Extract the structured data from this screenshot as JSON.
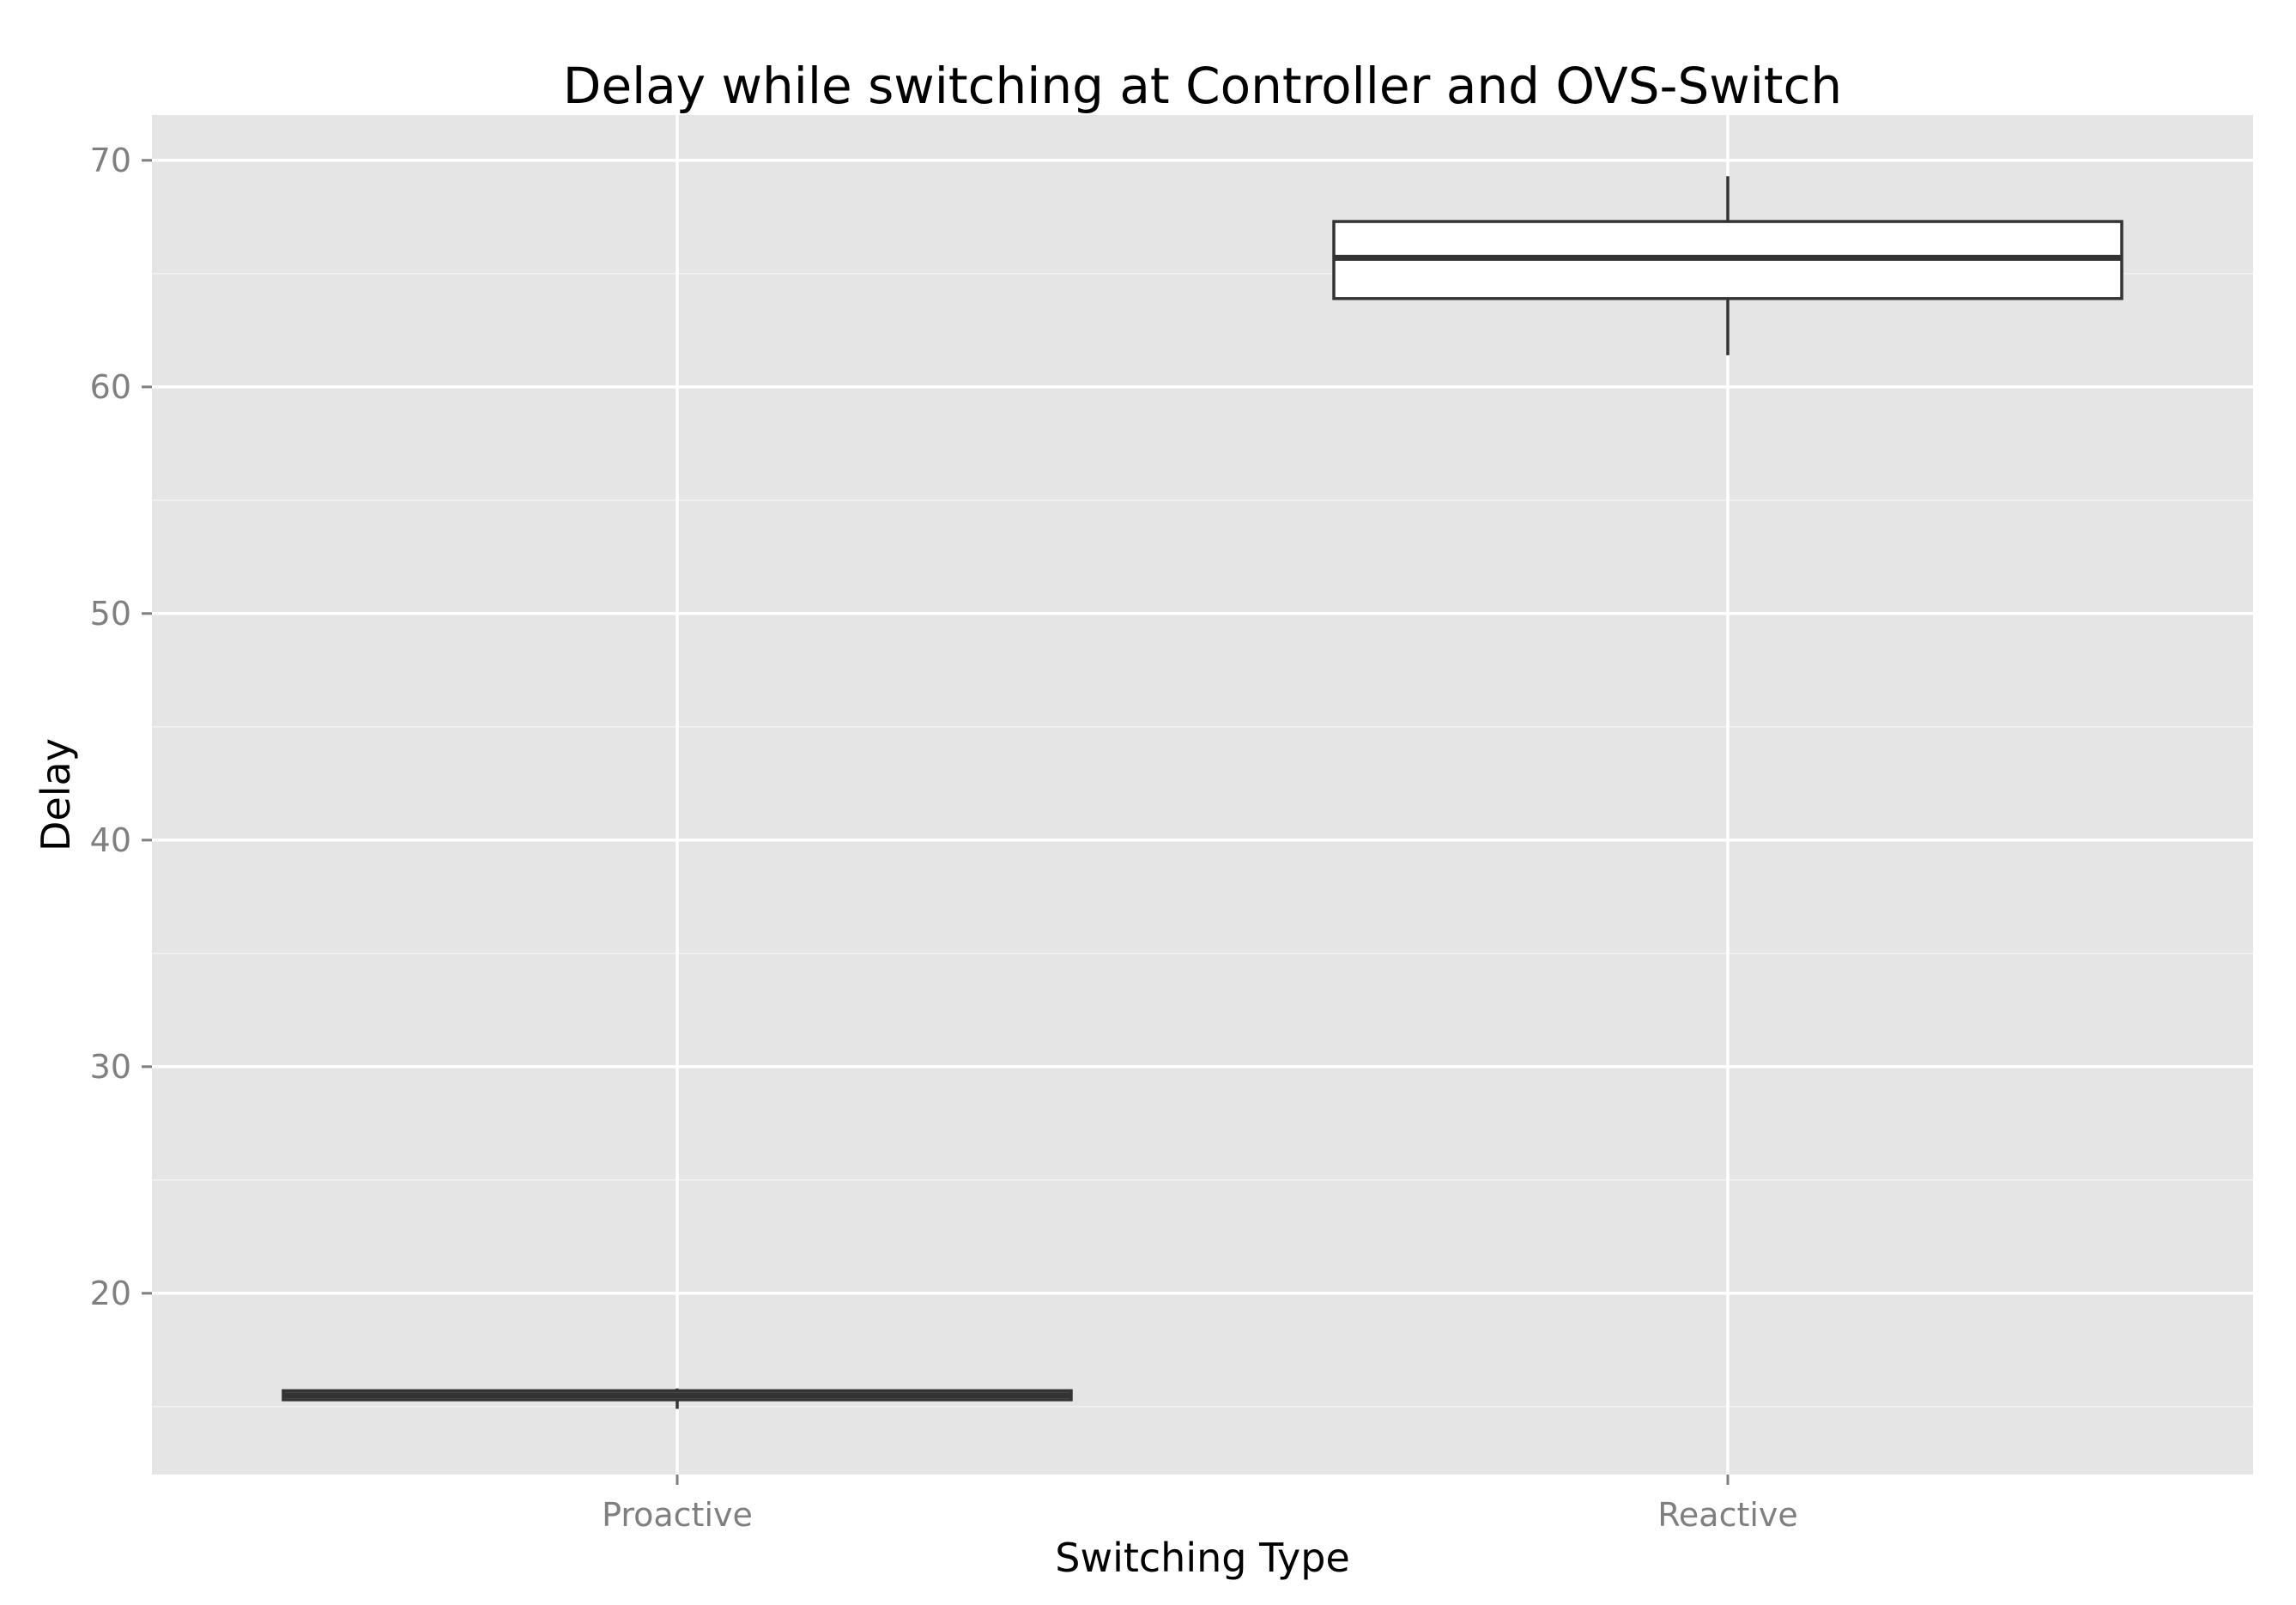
{
  "chart_data": {
    "type": "boxplot",
    "title": "Delay while switching at Controller and OVS-Switch",
    "xlabel": "Switching Type",
    "ylabel": "Delay",
    "categories": [
      "Proactive",
      "Reactive"
    ],
    "ylim": [
      12,
      72
    ],
    "yticks": [
      20,
      30,
      40,
      50,
      60,
      70
    ],
    "grid": true,
    "background": "#e5e5e5",
    "grid_major_color": "#ffffff",
    "box_stroke_color": "#333333",
    "box_fill_color": "#ffffff",
    "boxes": [
      {
        "category": "Proactive",
        "whisker_low": 14.9,
        "q1": 15.3,
        "median": 15.5,
        "q3": 15.7,
        "whisker_high": 15.8
      },
      {
        "category": "Reactive",
        "whisker_low": 61.4,
        "q1": 63.9,
        "median": 65.7,
        "q3": 67.3,
        "whisker_high": 69.3
      }
    ]
  }
}
